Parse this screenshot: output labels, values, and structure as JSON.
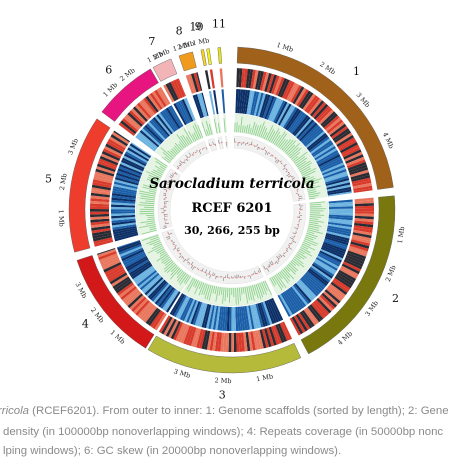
{
  "center": {
    "species": "Sarocladium terricola",
    "strain": "RCEF 6201",
    "size": "30, 266, 255 bp"
  },
  "scaffolds": [
    {
      "label": "1",
      "color": "#a0621a",
      "ticks": [
        "1 Mb",
        "2 Mb",
        "3 Mb",
        "4 Mb"
      ]
    },
    {
      "label": "2",
      "color": "#78780f",
      "ticks": [
        "1 Mb",
        "2 Mb",
        "3 Mb",
        "4 Mb"
      ]
    },
    {
      "label": "3",
      "color": "#b5ba3a",
      "ticks": [
        "1 Mb",
        "2 Mb",
        "3 Mb"
      ]
    },
    {
      "label": "4",
      "color": "#d21818",
      "ticks": [
        "1 Mb",
        "2 Mb",
        "3 Mb"
      ]
    },
    {
      "label": "5",
      "color": "#ef3d2d",
      "ticks": [
        "1 Mb",
        "2 Mb",
        "3 Mb"
      ]
    },
    {
      "label": "6",
      "color": "#e6157f",
      "ticks": [
        "1 Mb",
        "2 Mb"
      ]
    },
    {
      "label": "7",
      "color": "#f3b4b8",
      "ticks": [
        "1 Mb",
        "2 Mb"
      ]
    },
    {
      "label": "8",
      "color": "#ef9b1e",
      "ticks": [
        "1 Mb",
        "2 Mb"
      ]
    },
    {
      "label": "9",
      "color": "#f7d21a",
      "ticks": [
        "1 Mb"
      ]
    },
    {
      "label": "10",
      "color": "#f2f11a",
      "ticks": []
    },
    {
      "label": "11",
      "color": "#e9e317",
      "ticks": []
    }
  ],
  "tracks": {
    "gene_density_colors": [
      "#d83a2c",
      "#2b2b33",
      "#e9775e"
    ],
    "repeat_colors": [
      "#1b5ea8",
      "#6cb3e0",
      "#0b2f66"
    ],
    "gc_color": "#8fd18f",
    "skew_color": "#9a9a9a"
  },
  "caption": {
    "line1_italic": "rricola",
    "line1_text": " (RCEF6201). From outer to inner: 1: Genome scaffolds (sorted by length); 2: Gene",
    "line2": "density (in 100000bp nonoverlapping windows); 4: Repeats coverage (in 50000bp nonc",
    "line3": "lping windows); 6: GC skew (in 20000bp nonoverlapping windows)."
  }
}
